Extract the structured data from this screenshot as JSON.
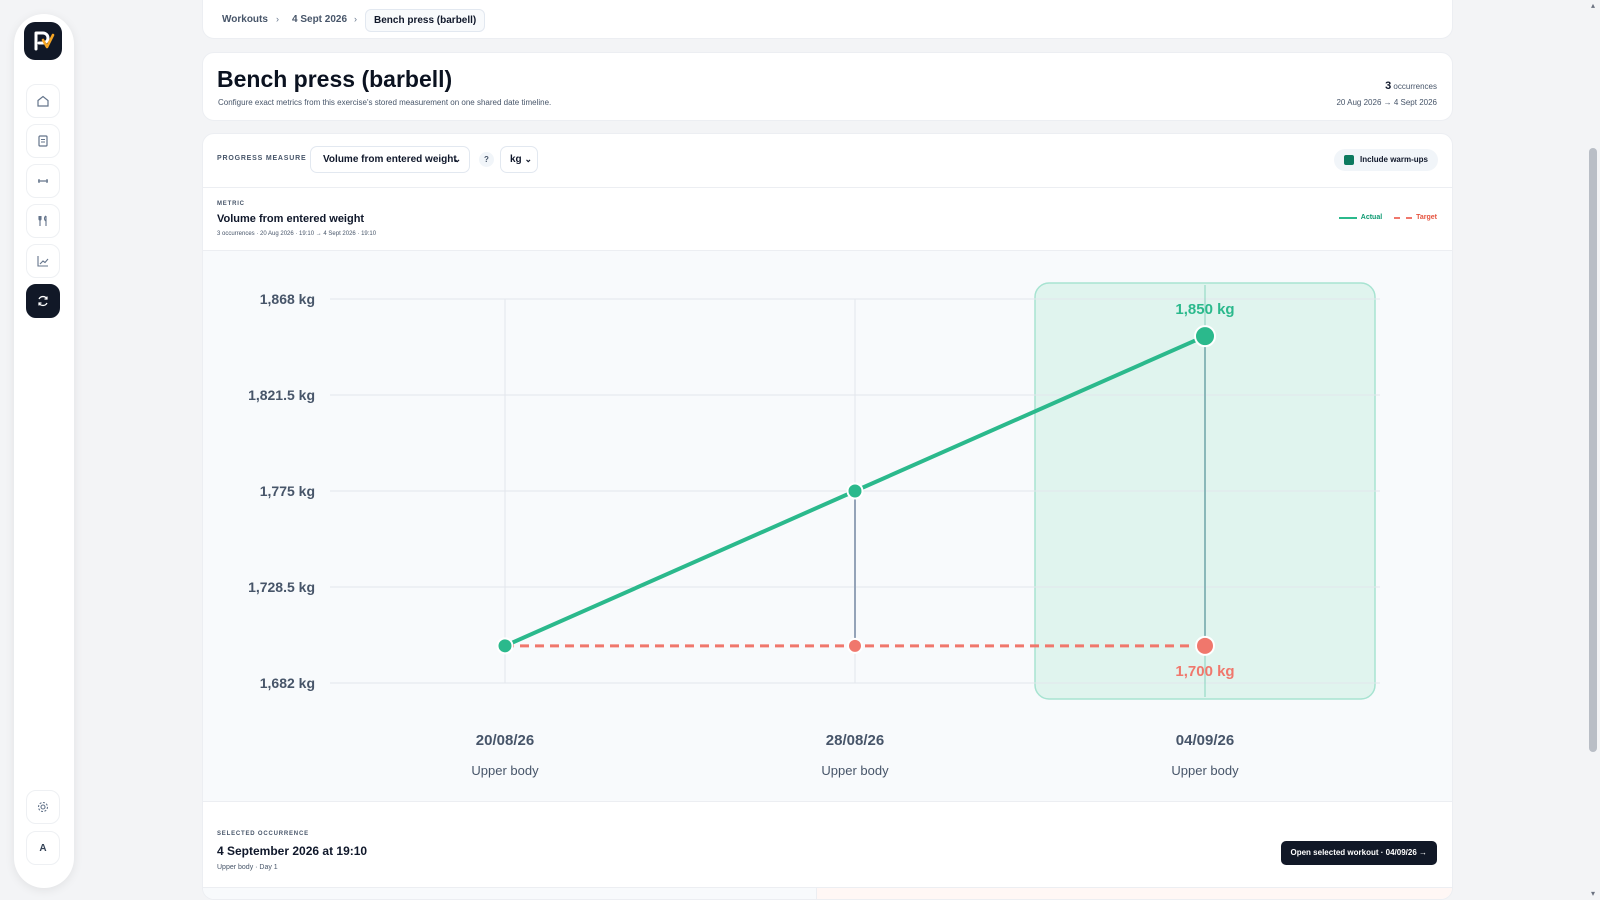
{
  "breadcrumb": {
    "items": [
      "Workouts",
      "4 Sept 2026"
    ],
    "current": "Bench press (barbell)",
    "separator": "›"
  },
  "header": {
    "title": "Bench press (barbell)",
    "subtitle": "Configure exact metrics from this exercise's stored measurement on one shared date timeline.",
    "occurrence_count": "3",
    "occurrence_label": "occurrences",
    "date_range": "20 Aug 2026 → 4 Sept 2026"
  },
  "controls": {
    "progress_measure_label": "PROGRESS MEASURE",
    "measure_value": "Volume from entered weight",
    "help": "?",
    "unit_value": "kg",
    "include_warmups_label": "Include warm-ups",
    "include_warmups_checked": true
  },
  "metric": {
    "label": "METRIC",
    "name": "Volume from entered weight",
    "detail": "3 occurrences · 20 Aug 2026 · 19:10 → 4 Sept 2026 · 19:10"
  },
  "legend": {
    "actual": "Actual",
    "target": "Target"
  },
  "colors": {
    "actual": "#2bb98c",
    "target": "#f0776c",
    "selection": "#d8f1ea"
  },
  "chart_data": {
    "type": "line",
    "categories": [
      "20/08/26",
      "28/08/26",
      "04/09/26"
    ],
    "category_sublabels": [
      "Upper body",
      "Upper body",
      "Upper body"
    ],
    "series": [
      {
        "name": "Actual",
        "values": [
          1700,
          1775,
          1850
        ]
      },
      {
        "name": "Target",
        "values": [
          1700,
          1700,
          1700
        ]
      }
    ],
    "ylim": [
      1682,
      1868
    ],
    "yticks": [
      1868,
      1821.5,
      1775,
      1728.5,
      1682
    ],
    "ytick_labels": [
      "1,868 kg",
      "1,821.5 kg",
      "1,775 kg",
      "1,728.5 kg",
      "1,682 kg"
    ],
    "selected_index": 2,
    "annotations": {
      "actual": "1,850 kg",
      "target": "1,700 kg"
    },
    "grid": true
  },
  "selected": {
    "label": "SELECTED OCCURRENCE",
    "title": "4 September 2026 at 19:10",
    "subtitle": "Upper body · Day 1",
    "open_button": "Open selected workout · 04/09/26 →"
  },
  "sidebar": {
    "icons": [
      "home-icon",
      "clipboard-icon",
      "dumbbell-icon",
      "utensils-icon",
      "chart-icon",
      "sync-icon"
    ],
    "settings_icon": "gear-icon",
    "avatar": "A"
  }
}
